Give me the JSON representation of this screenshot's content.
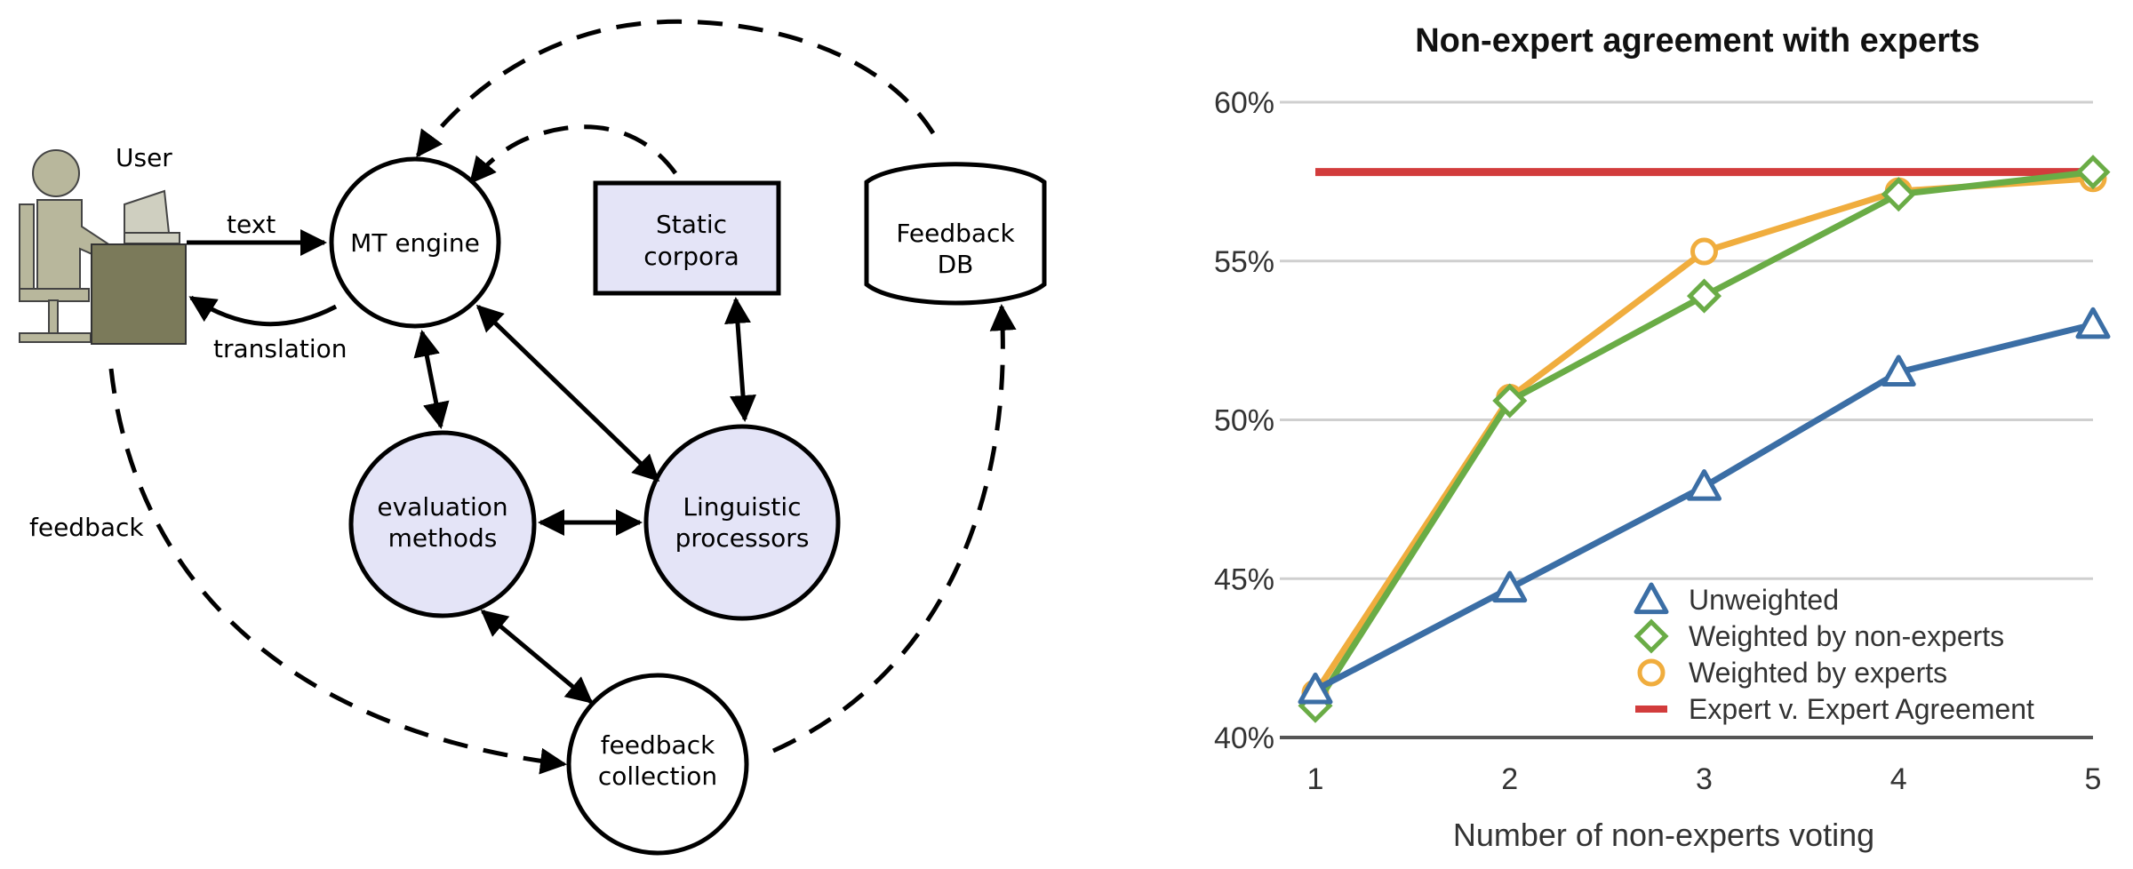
{
  "diagram": {
    "user_label": "User",
    "text_label": "text",
    "translation_label": "translation",
    "feedback_label": "feedback",
    "mt_engine": "MT engine",
    "static_corpora": [
      "Static",
      "corpora"
    ],
    "feedback_db": [
      "Feedback",
      "DB"
    ],
    "evaluation_methods": [
      "evaluation",
      "methods"
    ],
    "linguistic_processors": [
      "Linguistic",
      "processors"
    ],
    "feedback_collection": [
      "feedback",
      "collection"
    ],
    "colors": {
      "node_fill": "#e4e4f7",
      "user_fill": "#b8b79c",
      "desk_fill": "#7b7a5a",
      "stroke": "#000000"
    }
  },
  "chart_data": {
    "type": "line",
    "title": "Non-expert agreement with experts",
    "xlabel": "Number of non-experts voting",
    "ylabel": "",
    "x": [
      1,
      2,
      3,
      4,
      5
    ],
    "xlim": [
      1,
      5
    ],
    "ylim": [
      40,
      60
    ],
    "yticks": [
      40,
      45,
      50,
      55,
      60
    ],
    "ytick_labels": [
      "40%",
      "45%",
      "50%",
      "55%",
      "60%"
    ],
    "grid": true,
    "legend_position": "bottom-right",
    "series": [
      {
        "name": "Unweighted",
        "values": [
          41.5,
          44.7,
          47.9,
          51.5,
          53.0
        ],
        "color": "#3b6ea5",
        "marker": "triangle"
      },
      {
        "name": "Weighted by non-experts",
        "values": [
          41.0,
          50.6,
          53.9,
          57.1,
          57.8
        ],
        "color": "#6aac46",
        "marker": "diamond"
      },
      {
        "name": "Weighted by experts",
        "values": [
          41.4,
          50.7,
          55.3,
          57.2,
          57.6
        ],
        "color": "#f0ad3e",
        "marker": "circle"
      },
      {
        "name": "Expert v. Expert Agreement",
        "values": [
          57.8,
          57.8,
          57.8,
          57.8,
          57.8
        ],
        "color": "#d23c3c",
        "marker": "none"
      }
    ]
  }
}
